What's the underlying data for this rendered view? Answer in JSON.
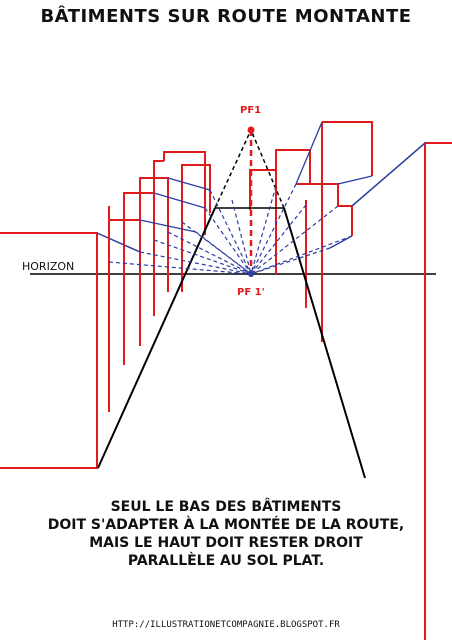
{
  "title": "BÂTIMENTS SUR ROUTE MONTANTE",
  "labels": {
    "horizon": "HORIZON",
    "vanishing_point_1": "PF1",
    "vanishing_point_1_prime": "PF 1'"
  },
  "caption": {
    "lines": [
      "SEUL LE BAS DES BÂTIMENTS",
      "DOIT S'ADAPTER À LA MONTÉE DE LA ROUTE,",
      "MAIS LE HAUT DOIT RESTER DROIT",
      "PARALLÈLE AU SOL PLAT."
    ]
  },
  "footer": "HTTP://ILLUSTRATIONETCOMPAGNIE.BLOGSPOT.FR",
  "colors": {
    "building_outline": "#e31a1c",
    "guide_lines": "#2c3e9f",
    "road": "#000000"
  }
}
